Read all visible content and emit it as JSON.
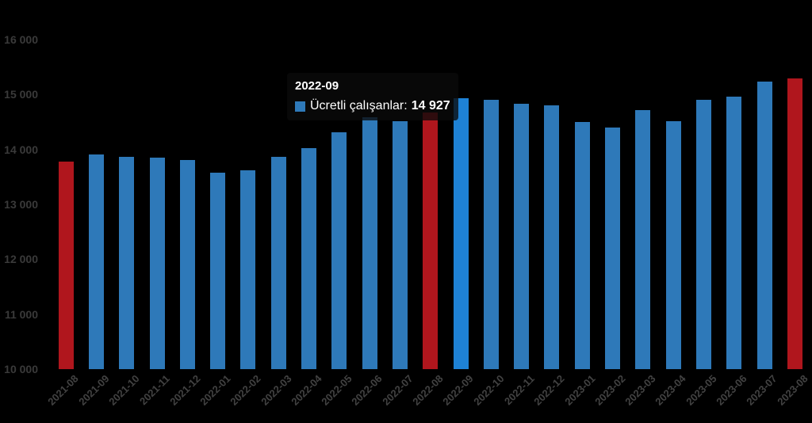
{
  "chart_data": {
    "type": "bar",
    "title": "",
    "series_name": "Ücretli çalışanlar",
    "categories": [
      "2021-08",
      "2021-09",
      "2021-10",
      "2021-11",
      "2021-12",
      "2022-01",
      "2022-02",
      "2022-03",
      "2022-04",
      "2022-05",
      "2022-06",
      "2022-07",
      "2022-08",
      "2022-09",
      "2022-10",
      "2022-11",
      "2022-12",
      "2023-01",
      "2023-02",
      "2023-03",
      "2023-04",
      "2023-05",
      "2023-06",
      "2023-07",
      "2023-08"
    ],
    "values": [
      13780,
      13910,
      13870,
      13850,
      13810,
      13580,
      13620,
      13870,
      14020,
      14310,
      14590,
      14520,
      14680,
      14927,
      14910,
      14830,
      14810,
      14500,
      14400,
      14720,
      14520,
      14910,
      14960,
      15240,
      15300
    ],
    "highlight_categories": [
      "2021-08",
      "2022-08",
      "2023-08"
    ],
    "hovered_category": "2022-09",
    "ylim": [
      10000,
      16000
    ],
    "ytick_step": 1000,
    "ytick_labels": [
      "10 000",
      "11 000",
      "12 000",
      "13 000",
      "14 000",
      "15 000",
      "16 000"
    ],
    "grid": false,
    "legend_position": "none",
    "colors": {
      "bar": "#2e79b9",
      "bar_highlight": "#b0161d",
      "bar_hover": "#1e82d6",
      "y_axis_label": "#3a3a3a",
      "x_axis_label": "#424242",
      "tooltip_text": "#ffffff"
    },
    "tooltip": {
      "title": "2022-09",
      "label": "Ücretli çalışanlar:",
      "value": "14 927"
    }
  }
}
